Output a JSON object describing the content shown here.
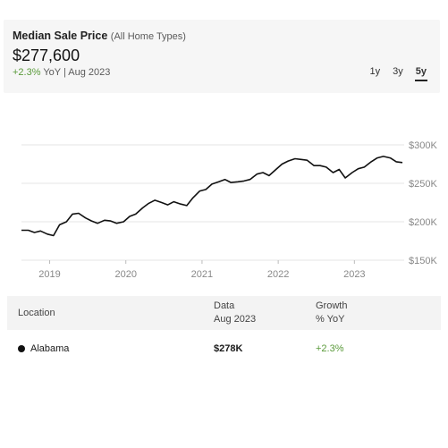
{
  "header": {
    "title": "Median Sale Price",
    "subtitle": "(All Home Types)",
    "price": "$277,600",
    "yoy_change": "+2.3%",
    "yoy_suffix": "YoY | Aug 2023",
    "ranges": [
      "1y",
      "3y",
      "5y"
    ],
    "active_range": "5y"
  },
  "colors": {
    "positive": "#5a9a3a",
    "line": "#111111",
    "grid": "#e4e4e4",
    "axis_text": "#888888"
  },
  "chart_data": {
    "type": "line",
    "title": "",
    "xlabel": "",
    "ylabel": "",
    "y_ticks": [
      150000,
      200000,
      250000,
      300000
    ],
    "y_tick_labels": [
      "$150K",
      "$200K",
      "$250K",
      "$300K"
    ],
    "ylim": [
      150000,
      300000
    ],
    "x_ticks": [
      2019,
      2020,
      2021,
      2022,
      2023
    ],
    "x_tick_labels": [
      "2019",
      "2020",
      "2021",
      "2022",
      "2023"
    ],
    "xlim": [
      2018.63,
      2023.63
    ],
    "grid": true,
    "series": [
      {
        "x": [
          2018.63,
          2018.72,
          2018.8,
          2018.88,
          2018.97,
          2019.05,
          2019.13,
          2019.22,
          2019.3,
          2019.38,
          2019.47,
          2019.55,
          2019.63,
          2019.72,
          2019.8,
          2019.88,
          2019.97,
          2020.05,
          2020.13,
          2020.22,
          2020.3,
          2020.38,
          2020.47,
          2020.55,
          2020.63,
          2020.72,
          2020.8,
          2020.88,
          2020.97,
          2021.05,
          2021.13,
          2021.22,
          2021.3,
          2021.38,
          2021.47,
          2021.55,
          2021.63,
          2021.72,
          2021.8,
          2021.88,
          2021.97,
          2022.05,
          2022.13,
          2022.22,
          2022.3,
          2022.38,
          2022.47,
          2022.55,
          2022.63,
          2022.72,
          2022.8,
          2022.88,
          2022.97,
          2023.05,
          2023.13,
          2023.22,
          2023.3,
          2023.38,
          2023.47,
          2023.55,
          2023.63
        ],
        "y": [
          189000,
          189000,
          186000,
          188000,
          184000,
          182000,
          196000,
          200000,
          210000,
          211000,
          205000,
          201000,
          198000,
          202000,
          201000,
          198000,
          200000,
          207000,
          210000,
          218000,
          224000,
          228000,
          225000,
          222000,
          226000,
          223000,
          221000,
          231000,
          240000,
          242000,
          249000,
          252000,
          255000,
          251000,
          252000,
          253000,
          255000,
          262000,
          264000,
          260000,
          268000,
          275000,
          279000,
          282000,
          281000,
          280000,
          273000,
          273000,
          271000,
          264000,
          268000,
          257000,
          264000,
          269000,
          271000,
          278000,
          283000,
          285000,
          283000,
          278000,
          277000
        ]
      }
    ]
  },
  "table": {
    "col_location": "Location",
    "col_data_title": "Data",
    "col_data_sub": "Aug 2023",
    "col_growth_title": "Growth",
    "col_growth_sub": "% YoY",
    "rows": [
      {
        "location": "Alabama",
        "data": "$278K",
        "growth": "+2.3%"
      }
    ]
  }
}
